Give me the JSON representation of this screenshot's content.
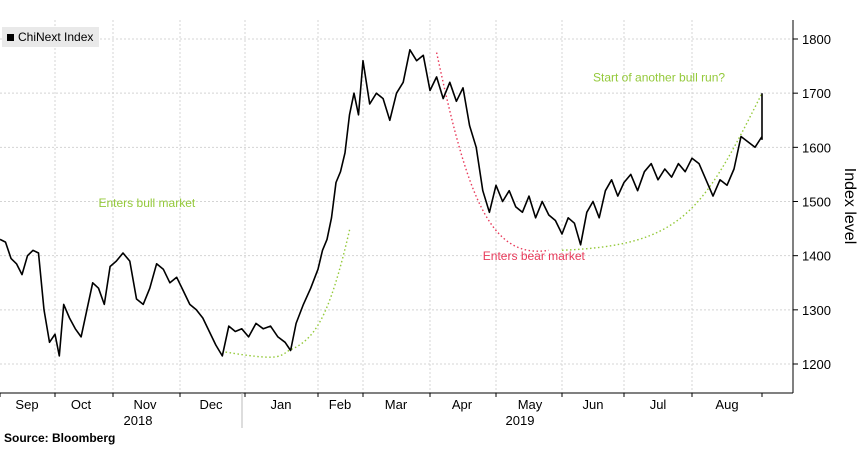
{
  "chart_data": {
    "type": "line",
    "legend": "ChiNext Index",
    "ylabel": "Index level",
    "ylim": [
      1165,
      1835
    ],
    "yticks": [
      1200,
      1300,
      1400,
      1500,
      1600,
      1700,
      1800
    ],
    "month_labels": [
      "Sep",
      "Oct",
      "Nov",
      "Dec",
      "Jan",
      "Feb",
      "Mar",
      "Apr",
      "May",
      "Jun",
      "Jul",
      "Aug"
    ],
    "year_labels": [
      "2018",
      "2019"
    ],
    "series": [
      {
        "name": "ChiNext Index",
        "points": [
          [
            0.0,
            1430
          ],
          [
            0.2,
            1425
          ],
          [
            0.4,
            1395
          ],
          [
            0.6,
            1385
          ],
          [
            0.8,
            1365
          ],
          [
            1.0,
            1400
          ],
          [
            1.2,
            1410
          ],
          [
            1.4,
            1405
          ],
          [
            1.6,
            1300
          ],
          [
            1.8,
            1240
          ],
          [
            2.0,
            1255
          ],
          [
            2.15,
            1215
          ],
          [
            2.3,
            1310
          ],
          [
            2.5,
            1285
          ],
          [
            2.7,
            1265
          ],
          [
            2.9,
            1250
          ],
          [
            3.1,
            1300
          ],
          [
            3.3,
            1350
          ],
          [
            3.5,
            1340
          ],
          [
            3.7,
            1310
          ],
          [
            3.9,
            1380
          ],
          [
            4.1,
            1390
          ],
          [
            4.3,
            1405
          ],
          [
            4.5,
            1390
          ],
          [
            4.7,
            1320
          ],
          [
            4.9,
            1310
          ],
          [
            5.1,
            1340
          ],
          [
            5.3,
            1385
          ],
          [
            5.5,
            1375
          ],
          [
            5.7,
            1350
          ],
          [
            5.9,
            1360
          ],
          [
            6.1,
            1335
          ],
          [
            6.3,
            1310
          ],
          [
            6.5,
            1300
          ],
          [
            6.7,
            1285
          ],
          [
            6.9,
            1260
          ],
          [
            7.1,
            1235
          ],
          [
            7.3,
            1215
          ],
          [
            7.5,
            1270
          ],
          [
            7.7,
            1260
          ],
          [
            7.9,
            1265
          ],
          [
            8.1,
            1250
          ],
          [
            8.3,
            1275
          ],
          [
            8.5,
            1265
          ],
          [
            8.7,
            1270
          ],
          [
            8.9,
            1250
          ],
          [
            9.1,
            1240
          ],
          [
            9.25,
            1225
          ],
          [
            9.4,
            1275
          ],
          [
            9.6,
            1310
          ],
          [
            9.8,
            1340
          ],
          [
            10.0,
            1375
          ],
          [
            10.2,
            1410
          ],
          [
            10.4,
            1430
          ],
          [
            10.6,
            1470
          ],
          [
            10.8,
            1535
          ],
          [
            11.0,
            1555
          ],
          [
            11.2,
            1590
          ],
          [
            11.4,
            1660
          ],
          [
            11.6,
            1700
          ],
          [
            11.8,
            1660
          ],
          [
            12.0,
            1760
          ],
          [
            12.2,
            1680
          ],
          [
            12.4,
            1700
          ],
          [
            12.6,
            1690
          ],
          [
            12.8,
            1650
          ],
          [
            13.0,
            1700
          ],
          [
            13.2,
            1720
          ],
          [
            13.4,
            1780
          ],
          [
            13.6,
            1760
          ],
          [
            13.8,
            1770
          ],
          [
            14.0,
            1705
          ],
          [
            14.2,
            1730
          ],
          [
            14.4,
            1690
          ],
          [
            14.6,
            1720
          ],
          [
            14.8,
            1685
          ],
          [
            15.0,
            1710
          ],
          [
            15.2,
            1640
          ],
          [
            15.4,
            1600
          ],
          [
            15.6,
            1520
          ],
          [
            15.8,
            1480
          ],
          [
            16.0,
            1530
          ],
          [
            16.2,
            1500
          ],
          [
            16.4,
            1520
          ],
          [
            16.6,
            1490
          ],
          [
            16.8,
            1480
          ],
          [
            17.0,
            1510
          ],
          [
            17.2,
            1470
          ],
          [
            17.4,
            1500
          ],
          [
            17.6,
            1475
          ],
          [
            17.8,
            1465
          ],
          [
            18.0,
            1440
          ],
          [
            18.2,
            1470
          ],
          [
            18.4,
            1460
          ],
          [
            18.6,
            1420
          ],
          [
            18.8,
            1480
          ],
          [
            19.0,
            1500
          ],
          [
            19.2,
            1470
          ],
          [
            19.4,
            1520
          ],
          [
            19.6,
            1540
          ],
          [
            19.8,
            1510
          ],
          [
            20.0,
            1535
          ],
          [
            20.2,
            1550
          ],
          [
            20.4,
            1520
          ],
          [
            20.6,
            1555
          ],
          [
            20.8,
            1570
          ],
          [
            21.0,
            1540
          ],
          [
            21.2,
            1560
          ],
          [
            21.4,
            1545
          ],
          [
            21.6,
            1570
          ],
          [
            21.8,
            1555
          ],
          [
            22.0,
            1580
          ],
          [
            22.2,
            1570
          ],
          [
            22.4,
            1540
          ],
          [
            22.6,
            1510
          ],
          [
            22.8,
            1540
          ],
          [
            23.0,
            1530
          ],
          [
            23.2,
            1560
          ],
          [
            23.4,
            1620
          ],
          [
            23.6,
            1610
          ],
          [
            23.8,
            1600
          ],
          [
            24.0,
            1620
          ],
          [
            24.2,
            1630
          ],
          [
            24.4,
            1615
          ],
          [
            24.6,
            1640
          ],
          [
            24.8,
            1665
          ],
          [
            25.0,
            1700
          ]
        ]
      }
    ],
    "annotations": [
      {
        "text": "Enters bull market",
        "color": "#94c93a",
        "at": [
          7.4,
          1222
        ],
        "anchor": [
          9.2,
          1225
        ],
        "label_at": [
          3.5,
          1490
        ]
      },
      {
        "text": "Enters bear market",
        "color": "#e83a5a",
        "at": [
          14.2,
          1775
        ],
        "anchor": [
          17.6,
          1410
        ],
        "label_at": [
          15.6,
          1392
        ]
      },
      {
        "text": "Start of another bull run?",
        "color": "#94c93a",
        "at": [
          18.0,
          1410
        ],
        "anchor": [
          25.0,
          1700
        ],
        "label_at": [
          19.0,
          1722
        ]
      }
    ]
  },
  "footer": {
    "source": "Source: Bloomberg"
  }
}
